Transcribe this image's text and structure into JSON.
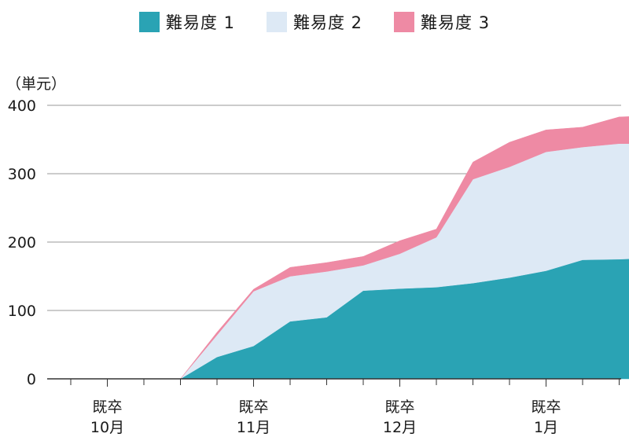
{
  "legend": {
    "items": [
      {
        "label": "難易度 1",
        "color": "#2aa3b4"
      },
      {
        "label": "難易度 2",
        "color": "#dde9f5"
      },
      {
        "label": "難易度 3",
        "color": "#ee8aa4"
      }
    ]
  },
  "unit_label": "（単元）",
  "chart_data": {
    "type": "area",
    "stacked": true,
    "ylabel": "（単元）",
    "ylim": [
      0,
      400
    ],
    "yticks": [
      "0",
      "100",
      "200",
      "300",
      "400"
    ],
    "grid": true,
    "legend_position": "top",
    "x_major_labels": [
      {
        "index": 1,
        "lines": [
          "既卒",
          "10月"
        ]
      },
      {
        "index": 5,
        "lines": [
          "既卒",
          "11月"
        ]
      },
      {
        "index": 9,
        "lines": [
          "既卒",
          "12月"
        ]
      },
      {
        "index": 13,
        "lines": [
          "既卒",
          "1月"
        ]
      }
    ],
    "x_count": 17,
    "series": [
      {
        "name": "難易度 1",
        "color": "#2aa3b4",
        "values": [
          null,
          null,
          null,
          0,
          32,
          48,
          84,
          90,
          129,
          132,
          134,
          140,
          148,
          158,
          174,
          175,
          177
        ]
      },
      {
        "name": "難易度 2",
        "color": "#dde9f5",
        "values": [
          null,
          null,
          null,
          0,
          32,
          80,
          66,
          67,
          37,
          51,
          73,
          152,
          162,
          174,
          165,
          169,
          167
        ]
      },
      {
        "name": "難易度 3",
        "color": "#ee8aa4",
        "values": [
          null,
          null,
          null,
          0,
          4,
          3,
          13,
          13,
          13,
          19,
          12,
          25,
          36,
          32,
          29,
          39,
          41
        ]
      }
    ]
  }
}
